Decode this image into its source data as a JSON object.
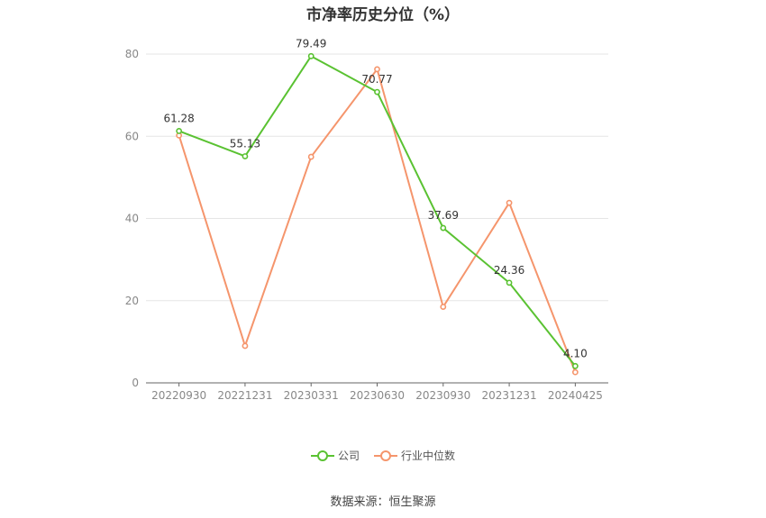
{
  "chart_data": {
    "type": "line",
    "title": "市净率历史分位（%）",
    "categories": [
      "20220930",
      "20221231",
      "20230331",
      "20230630",
      "20230930",
      "20231231",
      "20240425"
    ],
    "series": [
      {
        "name": "公司",
        "color": "#5ac232",
        "values": [
          61.28,
          55.13,
          79.49,
          70.77,
          37.69,
          24.36,
          4.1
        ],
        "labels": [
          "61.28",
          "55.13",
          "79.49",
          "70.77",
          "37.69",
          "24.36",
          "4.10"
        ]
      },
      {
        "name": "行业中位数",
        "color": "#f5956c",
        "values": [
          60.2,
          9.0,
          55.0,
          76.3,
          18.5,
          43.8,
          2.6
        ]
      }
    ],
    "ylim": [
      0,
      80
    ],
    "yticks": [
      0,
      20,
      40,
      60,
      80
    ],
    "xlabel": "",
    "ylabel": "",
    "grid": true,
    "legend_position": "bottom"
  },
  "source": "数据来源：恒生聚源"
}
